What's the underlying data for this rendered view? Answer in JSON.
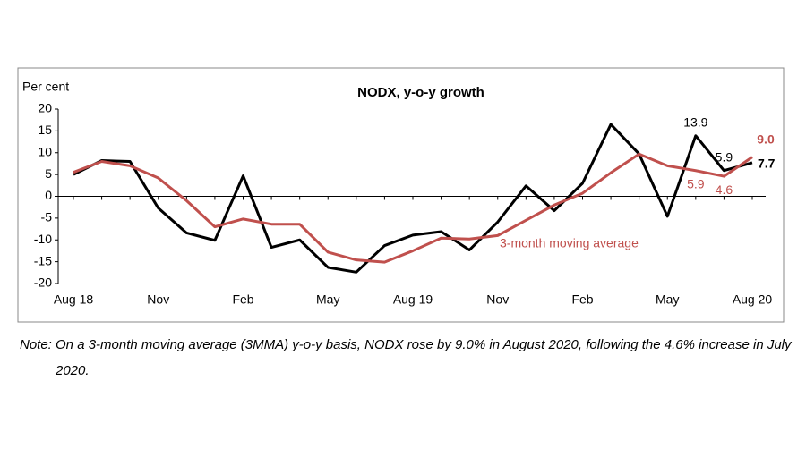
{
  "chart_data": {
    "type": "line",
    "title": "NODX, y-o-y growth",
    "y_label": "Per cent",
    "categories": [
      "Aug 18",
      null,
      null,
      "Nov",
      null,
      null,
      "Feb",
      null,
      null,
      "May",
      null,
      null,
      "Aug 19",
      null,
      null,
      "Nov",
      null,
      null,
      "Feb",
      null,
      null,
      "May",
      null,
      null,
      "Aug 20"
    ],
    "series": [
      {
        "color": "#000000",
        "values": [
          5,
          8.2,
          8,
          -2.7,
          -8.4,
          -10.1,
          4.7,
          -11.7,
          -10,
          -16.3,
          -17.4,
          -11.3,
          -8.9,
          -8.1,
          -12.3,
          -5.9,
          2.4,
          -3.3,
          3.0,
          16.5,
          9.7,
          -4.6,
          13.9,
          5.9,
          7.7
        ],
        "value_labels": [
          null,
          null,
          null,
          null,
          null,
          null,
          null,
          null,
          null,
          null,
          null,
          null,
          null,
          null,
          null,
          null,
          null,
          null,
          null,
          null,
          null,
          null,
          "13.9",
          "5.9",
          "7.7"
        ]
      },
      {
        "name": "3-month moving average",
        "color": "#c0504d",
        "values": [
          5.5,
          8,
          7,
          4.2,
          -1,
          -7,
          -5.2,
          -6.4,
          -6.4,
          -12.8,
          -14.6,
          -15.1,
          -12.5,
          -9.6,
          -9.8,
          -9.0,
          -5.5,
          -2,
          0.7,
          5.4,
          9.7,
          7,
          5.9,
          4.6,
          9.0
        ],
        "value_labels": [
          null,
          null,
          null,
          null,
          null,
          null,
          null,
          null,
          null,
          null,
          null,
          null,
          null,
          null,
          null,
          null,
          null,
          null,
          null,
          null,
          null,
          null,
          "5.9",
          "4.6",
          "9.0"
        ]
      }
    ],
    "ylim": [
      -20,
      20
    ],
    "yticks": [
      -20,
      -15,
      -10,
      -5,
      0,
      5,
      10,
      15,
      20
    ]
  },
  "note": "Note: On a 3-month moving average (3MMA) y-o-y basis, NODX rose by 9.0% in August 2020, following the 4.6% increase in July 2020."
}
